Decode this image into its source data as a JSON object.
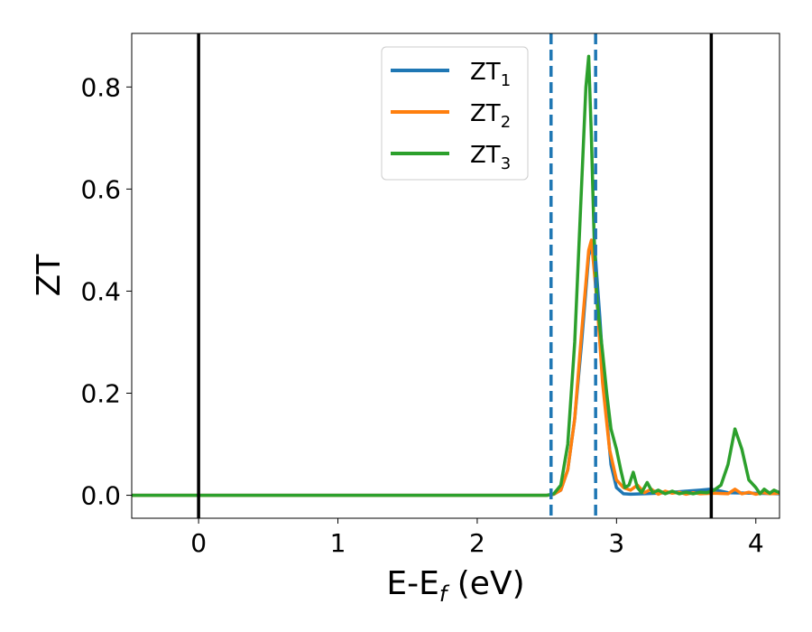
{
  "chart_data": {
    "type": "line",
    "xlabel": "E-E",
    "xlabel_sub": "f",
    "xlabel_unit": " (eV)",
    "ylabel": "ZT",
    "xlim": [
      -0.48,
      4.17
    ],
    "ylim": [
      -0.045,
      0.905
    ],
    "xticks": [
      0,
      1,
      2,
      3,
      4
    ],
    "xtick_labels": [
      "0",
      "1",
      "2",
      "3",
      "4"
    ],
    "yticks": [
      0.0,
      0.2,
      0.4,
      0.6,
      0.8
    ],
    "ytick_labels": [
      "0.0",
      "0.2",
      "0.4",
      "0.6",
      "0.8"
    ],
    "legend_position": "top-center",
    "vlines": [
      {
        "x": 0.0,
        "style": "solid",
        "color": "#000000"
      },
      {
        "x": 3.68,
        "style": "solid",
        "color": "#000000"
      },
      {
        "x": 2.53,
        "style": "dashed",
        "color": "#1f77b4"
      },
      {
        "x": 2.85,
        "style": "dashed",
        "color": "#1f77b4"
      }
    ],
    "series": [
      {
        "name": "ZT",
        "sub": "1",
        "color": "#1f77b4",
        "x": [
          -0.48,
          2.5,
          2.55,
          2.6,
          2.65,
          2.7,
          2.75,
          2.8,
          2.84,
          2.88,
          2.92,
          2.96,
          3.0,
          3.05,
          3.1,
          3.2,
          3.3,
          3.4,
          3.5,
          3.6,
          3.68,
          3.75,
          3.8,
          4.17
        ],
        "y": [
          0.0,
          0.0,
          0.002,
          0.01,
          0.05,
          0.15,
          0.3,
          0.47,
          0.5,
          0.35,
          0.18,
          0.06,
          0.015,
          0.003,
          0.002,
          0.003,
          0.004,
          0.006,
          0.008,
          0.01,
          0.012,
          0.008,
          0.005,
          0.003
        ]
      },
      {
        "name": "ZT",
        "sub": "2",
        "color": "#ff7f0e",
        "x": [
          -0.48,
          2.5,
          2.55,
          2.6,
          2.65,
          2.7,
          2.75,
          2.8,
          2.82,
          2.86,
          2.9,
          2.95,
          3.0,
          3.05,
          3.1,
          3.15,
          3.2,
          3.25,
          3.3,
          3.35,
          3.4,
          3.45,
          3.5,
          3.55,
          3.6,
          3.7,
          3.8,
          3.85,
          3.9,
          3.95,
          4.0,
          4.05,
          4.1,
          4.17
        ],
        "y": [
          0.0,
          0.0,
          0.002,
          0.01,
          0.05,
          0.15,
          0.32,
          0.48,
          0.5,
          0.38,
          0.22,
          0.09,
          0.03,
          0.015,
          0.01,
          0.02,
          0.005,
          0.012,
          0.002,
          0.008,
          0.004,
          0.006,
          0.002,
          0.005,
          0.003,
          0.004,
          0.003,
          0.012,
          0.003,
          0.006,
          0.002,
          0.005,
          0.003,
          0.004
        ]
      },
      {
        "name": "ZT",
        "sub": "3",
        "color": "#2ca02c",
        "x": [
          -0.48,
          2.5,
          2.55,
          2.6,
          2.65,
          2.7,
          2.74,
          2.78,
          2.8,
          2.82,
          2.84,
          2.86,
          2.88,
          2.9,
          2.93,
          2.96,
          3.0,
          3.03,
          3.06,
          3.09,
          3.12,
          3.15,
          3.18,
          3.22,
          3.26,
          3.3,
          3.35,
          3.4,
          3.45,
          3.5,
          3.55,
          3.6,
          3.65,
          3.7,
          3.75,
          3.8,
          3.85,
          3.9,
          3.95,
          4.0,
          4.03,
          4.06,
          4.1,
          4.13,
          4.17
        ],
        "y": [
          0.0,
          0.0,
          0.003,
          0.02,
          0.1,
          0.3,
          0.55,
          0.8,
          0.86,
          0.7,
          0.5,
          0.38,
          0.33,
          0.28,
          0.2,
          0.13,
          0.09,
          0.05,
          0.015,
          0.02,
          0.045,
          0.015,
          0.005,
          0.025,
          0.005,
          0.01,
          0.003,
          0.008,
          0.003,
          0.006,
          0.003,
          0.006,
          0.005,
          0.01,
          0.02,
          0.06,
          0.13,
          0.09,
          0.03,
          0.015,
          0.003,
          0.012,
          0.004,
          0.01,
          0.005
        ]
      }
    ]
  }
}
